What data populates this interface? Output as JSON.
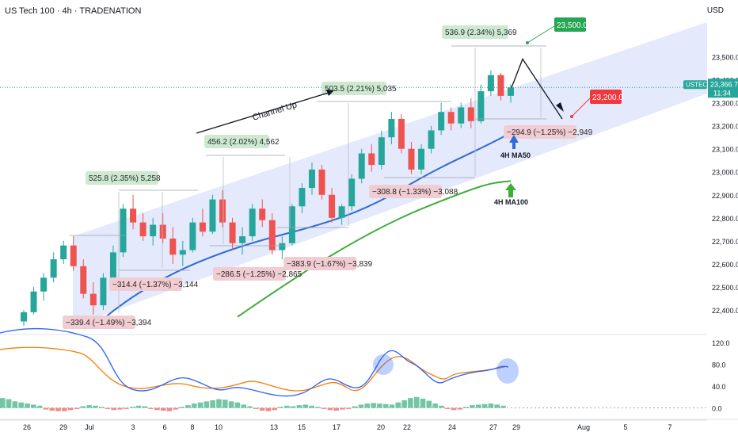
{
  "header": {
    "title": "US Tech 100 · 4h · TRADENATION",
    "currency": "USD"
  },
  "colors": {
    "bull": "#26a69a",
    "bear": "#ef5350",
    "ma50": "#2f6bd6",
    "ma100": "#3fad3a",
    "channel": "#dbe3fb",
    "label_green_bg": "#cfe8d2",
    "label_red_bg": "#f0cdd2",
    "target_green": "#26a652",
    "target_red": "#f0383f",
    "rsi_blue": "#2962ff",
    "rsi_orange": "#f57c00"
  },
  "chart_data": {
    "type": "candlestick",
    "title": "US Tech 100 · 4h · TRADENATION",
    "ylabel": "USD",
    "ylim": [
      22300,
      23650
    ],
    "y_ticks": [
      "23,500.0",
      "23,400.0",
      "23,300.0",
      "23,200.0",
      "23,100.0",
      "23,000.0",
      "22,900.0",
      "22,800.0",
      "22,700.0",
      "22,600.0",
      "22,500.0",
      "22,400.0"
    ],
    "x_ticks": [
      "26",
      "29",
      "Jul",
      "3",
      "6",
      "8",
      "10",
      "13",
      "15",
      "17",
      "20",
      "22",
      "24",
      "27",
      "29",
      "Aug",
      "5",
      "7"
    ],
    "current_price": {
      "symbol": "USTEC",
      "price": "23,366.7",
      "countdown": "11:34"
    },
    "candles_ohlc_approx": [
      [
        22350,
        22400,
        22330,
        22390
      ],
      [
        22390,
        22500,
        22380,
        22480
      ],
      [
        22480,
        22560,
        22440,
        22540
      ],
      [
        22540,
        22650,
        22520,
        22620
      ],
      [
        22620,
        22700,
        22600,
        22680
      ],
      [
        22680,
        22720,
        22570,
        22590
      ],
      [
        22590,
        22620,
        22450,
        22470
      ],
      [
        22470,
        22520,
        22380,
        22420
      ],
      [
        22420,
        22560,
        22400,
        22540
      ],
      [
        22540,
        22680,
        22520,
        22650
      ],
      [
        22650,
        22860,
        22630,
        22840
      ],
      [
        22840,
        22900,
        22750,
        22780
      ],
      [
        22780,
        22820,
        22700,
        22720
      ],
      [
        22720,
        22800,
        22680,
        22770
      ],
      [
        22770,
        22820,
        22690,
        22710
      ],
      [
        22710,
        22760,
        22600,
        22640
      ],
      [
        22640,
        22700,
        22590,
        22660
      ],
      [
        22660,
        22800,
        22650,
        22780
      ],
      [
        22780,
        22840,
        22720,
        22740
      ],
      [
        22740,
        22900,
        22730,
        22880
      ],
      [
        22880,
        22920,
        22760,
        22780
      ],
      [
        22780,
        22800,
        22660,
        22690
      ],
      [
        22690,
        22760,
        22640,
        22720
      ],
      [
        22720,
        22860,
        22700,
        22840
      ],
      [
        22840,
        22880,
        22760,
        22790
      ],
      [
        22790,
        22820,
        22640,
        22660
      ],
      [
        22660,
        22720,
        22620,
        22690
      ],
      [
        22690,
        22860,
        22680,
        22850
      ],
      [
        22850,
        22950,
        22820,
        22930
      ],
      [
        22930,
        23040,
        22900,
        23010
      ],
      [
        23010,
        23030,
        22880,
        22900
      ],
      [
        22900,
        22930,
        22780,
        22800
      ],
      [
        22800,
        22860,
        22770,
        22850
      ],
      [
        22850,
        22990,
        22830,
        22970
      ],
      [
        22970,
        23100,
        22950,
        23080
      ],
      [
        23080,
        23120,
        23000,
        23030
      ],
      [
        23030,
        23180,
        23010,
        23150
      ],
      [
        23150,
        23260,
        23120,
        23230
      ],
      [
        23230,
        23250,
        23080,
        23100
      ],
      [
        23100,
        23130,
        22990,
        23010
      ],
      [
        23010,
        23120,
        22990,
        23100
      ],
      [
        23100,
        23200,
        23080,
        23180
      ],
      [
        23180,
        23300,
        23160,
        23260
      ],
      [
        23260,
        23280,
        23180,
        23210
      ],
      [
        23210,
        23300,
        23190,
        23280
      ],
      [
        23280,
        23320,
        23190,
        23220
      ],
      [
        23220,
        23380,
        23210,
        23350
      ],
      [
        23350,
        23440,
        23330,
        23420
      ],
      [
        23420,
        23430,
        23310,
        23330
      ],
      [
        23330,
        23380,
        23300,
        23366.7
      ]
    ]
  },
  "channel": {
    "label": "Channel Up"
  },
  "moving_averages": {
    "ma50_label": "4H MA50",
    "ma100_label": "4H MA100"
  },
  "annotations": {
    "green_labels": [
      {
        "text": "525.8 (2.35%) 5,258"
      },
      {
        "text": "456.2 (2.02%) 4,562"
      },
      {
        "text": "503.5 (2.21%) 5,035"
      },
      {
        "text": "536.9 (2.34%) 5,369"
      }
    ],
    "red_labels": [
      {
        "text": "−339.4 (−1.49%) −3,394"
      },
      {
        "text": "−314.4 (−1.37%) −3,144"
      },
      {
        "text": "−286.5 (−1.25%) −2,865"
      },
      {
        "text": "−383.9 (−1.67%) −3,839"
      },
      {
        "text": "−308.8 (−1.33%) −3,088"
      },
      {
        "text": "−294.9 (−1.25%) −2,949"
      }
    ],
    "targets": [
      {
        "text": "23,500.0",
        "kind": "up"
      },
      {
        "text": "23,200.0",
        "kind": "down"
      }
    ]
  },
  "oscillator": {
    "y_ticks": [
      "120.0",
      "80.0",
      "40.0",
      "0.0"
    ],
    "histogram_approx": [
      18,
      16,
      12,
      10,
      8,
      6,
      4,
      -3,
      -5,
      -6,
      -6,
      -4,
      -2,
      3,
      5,
      4,
      2,
      -2,
      -4,
      -3,
      -2,
      2,
      4,
      3,
      -2,
      -4,
      -5,
      -6,
      -3,
      2,
      5,
      8,
      10,
      12,
      14,
      16,
      15,
      12,
      10,
      6,
      3,
      -2,
      -5,
      -6,
      -4,
      2,
      4,
      3,
      5,
      6,
      4,
      2,
      -2,
      -4,
      -5,
      -3,
      -2,
      3,
      6,
      8,
      9,
      8,
      7,
      6,
      10,
      14,
      18,
      20,
      17,
      13,
      8,
      4,
      -2,
      -4,
      -3,
      2,
      5,
      6,
      7,
      8,
      6,
      4
    ]
  }
}
